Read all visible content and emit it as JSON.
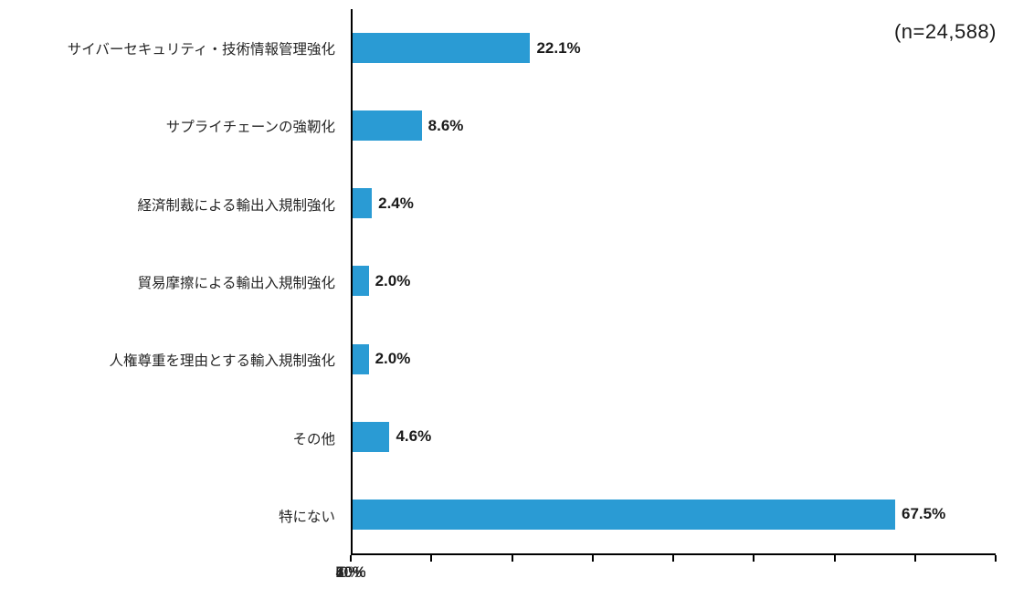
{
  "chart_data": {
    "type": "bar",
    "orientation": "horizontal",
    "title": "",
    "xlabel": "",
    "ylabel": "",
    "annotation": "(n=24,588)",
    "categories": [
      "サイバーセキュリティ・技術情報管理強化",
      "サプライチェーンの強靭化",
      "経済制裁による輸出入規制強化",
      "貿易摩擦による輸出入規制強化",
      "人権尊重を理由とする輸入規制強化",
      "その他",
      "特にない"
    ],
    "values": [
      22.1,
      8.6,
      2.4,
      2.0,
      2.0,
      4.6,
      67.5
    ],
    "value_labels": [
      "22.1%",
      "8.6%",
      "2.4%",
      "2.0%",
      "2.0%",
      "4.6%",
      "67.5%"
    ],
    "xlim": [
      0,
      80
    ],
    "xticks": [
      "0%",
      "10%",
      "20%",
      "30%",
      "40%",
      "50%",
      "60%",
      "70%",
      "80%"
    ],
    "grid": "off",
    "legend": "none",
    "bar_color": "#2A9BD4",
    "axis_color": "#000000",
    "label_color": "#262626",
    "value_label_color": "#1a1a1a"
  }
}
